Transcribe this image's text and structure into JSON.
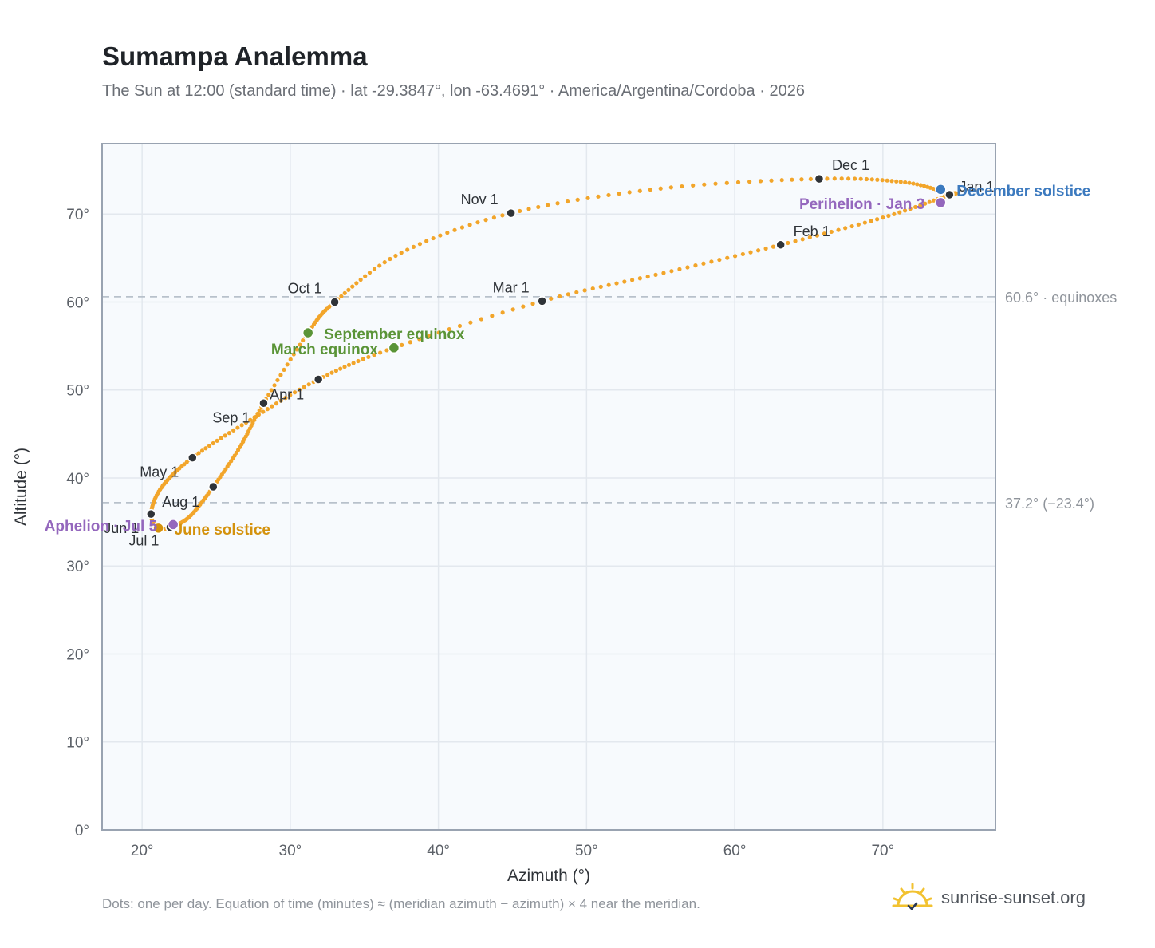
{
  "title": "Sumampa Analemma",
  "subtitle": "The Sun at 12:00 (standard time) · lat -29.3847°, lon -63.4691° · America/Argentina/Cordoba · 2026",
  "footnote": "Dots: one per day. Equation of time (minutes) ≈ (meridian azimuth − azimuth) × 4 near the meridian.",
  "brand": {
    "text": "sunrise-sunset.org",
    "icon": "sun-logo-icon"
  },
  "colors": {
    "curve": "#f2a52a",
    "month_marker": "#2f3338",
    "equinox": "#5a9437",
    "june_solstice": "#d4920d",
    "december_solstice": "#3c7abf",
    "apsis": "#9467bd",
    "plot_bg": "#f7fafd",
    "grid": "#e3e8ee",
    "frame": "#99a3b1",
    "ref_line": "#b8c1cb"
  },
  "chart_data": {
    "type": "scatter",
    "xlabel": "Azimuth (°)",
    "ylabel": "Altitude (°)",
    "xlim": [
      17.3,
      77.6
    ],
    "ylim": [
      0,
      78
    ],
    "xticks": [
      20,
      30,
      40,
      50,
      60,
      70
    ],
    "yticks": [
      0,
      10,
      20,
      30,
      40,
      50,
      60,
      70
    ],
    "tick_suffix": "°",
    "grid": true,
    "reference_lines": [
      {
        "y": 60.6,
        "label": "60.6° · equinoxes"
      },
      {
        "y": 37.2,
        "label": "37.2° (−23.4°)"
      }
    ],
    "daily_path": {
      "note": "Sun position at 12:00 standard time for each day of 2026, passing through the month markers below",
      "knots": [
        {
          "date": "Jan 1",
          "az": 74.5,
          "alt": 72.2
        },
        {
          "date": "Jan 15",
          "az": 70.0,
          "alt": 69.6
        },
        {
          "date": "Feb 1",
          "az": 63.1,
          "alt": 66.5
        },
        {
          "date": "Feb 15",
          "az": 55.2,
          "alt": 63.3
        },
        {
          "date": "Mar 1",
          "az": 47.0,
          "alt": 60.1
        },
        {
          "date": "Mar 20",
          "az": 37.0,
          "alt": 54.8
        },
        {
          "date": "Apr 1",
          "az": 31.9,
          "alt": 51.2
        },
        {
          "date": "Apr 15",
          "az": 27.3,
          "alt": 46.6
        },
        {
          "date": "May 1",
          "az": 23.4,
          "alt": 42.3
        },
        {
          "date": "May 15",
          "az": 21.3,
          "alt": 38.9
        },
        {
          "date": "Jun 1",
          "az": 20.6,
          "alt": 35.9
        },
        {
          "date": "Jun 21",
          "az": 21.1,
          "alt": 34.3
        },
        {
          "date": "Jul 1",
          "az": 21.9,
          "alt": 34.4
        },
        {
          "date": "Jul 15",
          "az": 23.2,
          "alt": 35.6
        },
        {
          "date": "Aug 1",
          "az": 24.8,
          "alt": 39.0
        },
        {
          "date": "Aug 15",
          "az": 26.6,
          "alt": 43.5
        },
        {
          "date": "Sep 1",
          "az": 28.2,
          "alt": 48.5
        },
        {
          "date": "Sep 22",
          "az": 31.2,
          "alt": 56.5
        },
        {
          "date": "Oct 1",
          "az": 33.0,
          "alt": 60.0
        },
        {
          "date": "Oct 15",
          "az": 37.5,
          "alt": 65.6
        },
        {
          "date": "Nov 1",
          "az": 44.9,
          "alt": 70.1
        },
        {
          "date": "Nov 15",
          "az": 55.0,
          "alt": 72.9
        },
        {
          "date": "Dec 1",
          "az": 65.7,
          "alt": 74.0
        },
        {
          "date": "Dec 15",
          "az": 71.5,
          "alt": 73.6
        },
        {
          "date": "Dec 31",
          "az": 74.4,
          "alt": 72.3
        }
      ]
    },
    "month_markers": [
      {
        "label": "Jan 1",
        "az": 74.5,
        "alt": 72.2,
        "anchor": "start",
        "dx": 12,
        "dy": -4
      },
      {
        "label": "Feb 1",
        "az": 63.1,
        "alt": 66.5,
        "anchor": "start",
        "dx": 16,
        "dy": -11
      },
      {
        "label": "Mar 1",
        "az": 47.0,
        "alt": 60.1,
        "anchor": "end",
        "dx": -16,
        "dy": -11
      },
      {
        "label": "Apr 1",
        "az": 31.9,
        "alt": 51.2,
        "anchor": "end",
        "dx": -18,
        "dy": 25
      },
      {
        "label": "May 1",
        "az": 23.4,
        "alt": 42.3,
        "anchor": "end",
        "dx": -17,
        "dy": 24
      },
      {
        "label": "Jun 1",
        "az": 20.6,
        "alt": 35.9,
        "anchor": "end",
        "dx": -15,
        "dy": 24
      },
      {
        "label": "Jul 1",
        "az": 21.9,
        "alt": 34.4,
        "anchor": "end",
        "dx": -14,
        "dy": 23
      },
      {
        "label": "Aug 1",
        "az": 24.8,
        "alt": 39.0,
        "anchor": "end",
        "dx": -17,
        "dy": 25
      },
      {
        "label": "Sep 1",
        "az": 28.2,
        "alt": 48.5,
        "anchor": "end",
        "dx": -17,
        "dy": 24
      },
      {
        "label": "Oct 1",
        "az": 33.0,
        "alt": 60.0,
        "anchor": "end",
        "dx": -16,
        "dy": -11
      },
      {
        "label": "Nov 1",
        "az": 44.9,
        "alt": 70.1,
        "anchor": "end",
        "dx": -16,
        "dy": -11
      },
      {
        "label": "Dec 1",
        "az": 65.7,
        "alt": 74.0,
        "anchor": "start",
        "dx": 16,
        "dy": -11
      }
    ],
    "events": [
      {
        "label": "March equinox",
        "az": 37.0,
        "alt": 54.8,
        "color_key": "equinox",
        "anchor": "end",
        "dx": -20,
        "dy": 8
      },
      {
        "label": "September equinox",
        "az": 31.2,
        "alt": 56.5,
        "color_key": "equinox",
        "anchor": "start",
        "dx": 20,
        "dy": 8
      },
      {
        "label": "June solstice",
        "az": 21.1,
        "alt": 34.3,
        "color_key": "june_solstice",
        "anchor": "start",
        "dx": 20,
        "dy": 8
      },
      {
        "label": "December solstice",
        "az": 73.9,
        "alt": 72.8,
        "color_key": "december_solstice",
        "anchor": "start",
        "dx": 20,
        "dy": 8
      },
      {
        "label": "Aphelion · Jul 5",
        "az": 22.1,
        "alt": 34.7,
        "color_key": "apsis",
        "anchor": "end",
        "dx": -20,
        "dy": 8
      },
      {
        "label": "Perihelion · Jan 3",
        "az": 73.9,
        "alt": 71.3,
        "color_key": "apsis",
        "anchor": "end",
        "dx": -20,
        "dy": 8
      }
    ]
  }
}
